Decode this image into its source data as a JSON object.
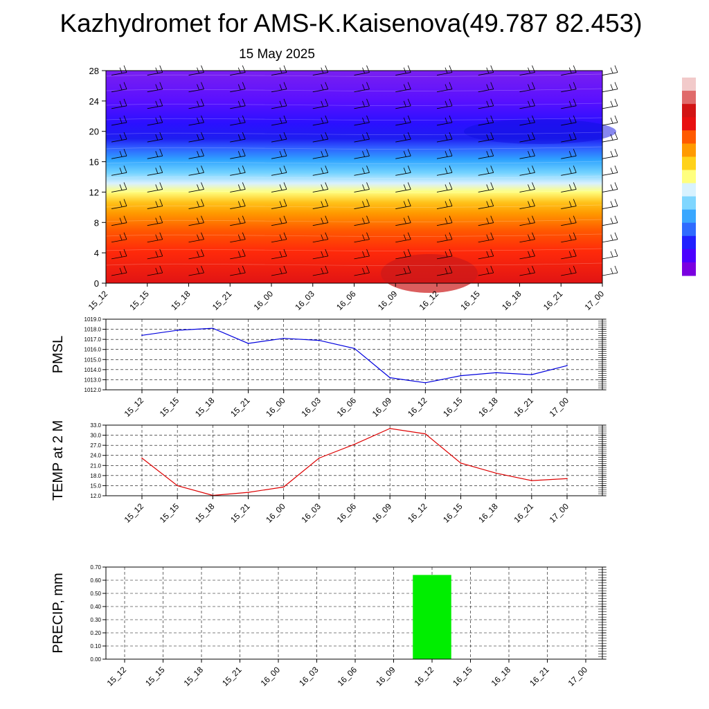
{
  "title": "Kazhydromet for AMS-K.Kaisenova(49.787 82.453)",
  "subtitle": "15 May 2025",
  "time_labels": [
    "15_12",
    "15_15",
    "15_18",
    "15_21",
    "16_00",
    "16_03",
    "16_06",
    "16_09",
    "16_12",
    "16_15",
    "16_18",
    "16_21",
    "17_00"
  ],
  "chart_data": [
    {
      "type": "heatmap",
      "panel": "vertical-profile",
      "x": [
        "15_12",
        "15_15",
        "15_18",
        "15_21",
        "16_00",
        "16_03",
        "16_06",
        "16_09",
        "16_12",
        "16_15",
        "16_18",
        "16_21",
        "17_00"
      ],
      "y_ticks": [
        0,
        4,
        8,
        12,
        16,
        20,
        24,
        28
      ],
      "ylim": [
        0,
        28
      ],
      "colorbar_colors": [
        "#7a00e0",
        "#4b00ff",
        "#2020ff",
        "#2f6bff",
        "#3aa7ff",
        "#7fd6ff",
        "#d8f2ff",
        "#ffff7f",
        "#ffd21a",
        "#ff9a00",
        "#ff5a00",
        "#e81010",
        "#d21414",
        "#e06a6a",
        "#f2caca"
      ],
      "wind_barbs": true,
      "grid": false
    },
    {
      "type": "line",
      "panel": "pmsl",
      "ylabel": "PMSL",
      "x": [
        "15_12",
        "15_15",
        "15_18",
        "15_21",
        "16_00",
        "16_03",
        "16_06",
        "16_09",
        "16_12",
        "16_15",
        "16_18",
        "16_21",
        "17_00"
      ],
      "values": [
        1017.4,
        1017.9,
        1018.1,
        1016.6,
        1017.1,
        1016.9,
        1016.1,
        1013.2,
        1012.7,
        1013.4,
        1013.7,
        1013.5,
        1014.4
      ],
      "ylim": [
        1012.0,
        1019.0
      ],
      "y_ticks": [
        "1012.0",
        "1013.0",
        "1014.0",
        "1015.0",
        "1016.0",
        "1017.0",
        "1018.0",
        "1019.0"
      ],
      "color": "#0000dd",
      "grid": true
    },
    {
      "type": "line",
      "panel": "temp2m",
      "ylabel": "TEMP at 2 M",
      "x": [
        "15_12",
        "15_15",
        "15_18",
        "15_21",
        "16_00",
        "16_03",
        "16_06",
        "16_09",
        "16_12",
        "16_15",
        "16_18",
        "16_21",
        "17_00"
      ],
      "values": [
        23.2,
        15.0,
        12.1,
        13.0,
        14.6,
        23.2,
        27.3,
        32.0,
        30.4,
        21.7,
        18.7,
        16.5,
        17.1
      ],
      "ylim": [
        12.0,
        33.0
      ],
      "y_ticks": [
        "12.0",
        "15.0",
        "18.0",
        "21.0",
        "24.0",
        "27.0",
        "30.0",
        "33.0"
      ],
      "color": "#dd0000",
      "grid": true
    },
    {
      "type": "bar",
      "panel": "precip",
      "ylabel": "PRECIP, mm",
      "categories": [
        "15_12",
        "15_15",
        "15_18",
        "15_21",
        "16_00",
        "16_03",
        "16_06",
        "16_09",
        "16_12",
        "16_15",
        "16_18",
        "16_21",
        "17_00"
      ],
      "values": [
        0,
        0,
        0,
        0,
        0,
        0,
        0,
        0,
        0.64,
        0,
        0,
        0,
        0
      ],
      "ylim": [
        0.0,
        0.7
      ],
      "y_ticks": [
        "0.00",
        "0.10",
        "0.20",
        "0.30",
        "0.40",
        "0.50",
        "0.60",
        "0.70"
      ],
      "color": "#00ee00",
      "grid": true
    }
  ]
}
